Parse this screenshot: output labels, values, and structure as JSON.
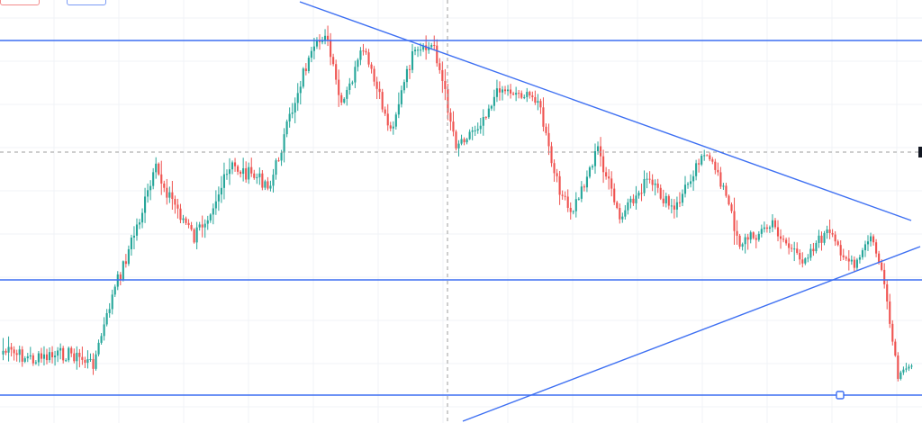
{
  "chart_data": {
    "type": "candlestick",
    "title": "",
    "xlabel": "",
    "ylabel": "",
    "ylim": [
      0,
      470
    ],
    "grid": true,
    "colors": {
      "up": "#26a69a",
      "down": "#ef5350",
      "drawing": "#3d6ff2",
      "crosshair": "#9e9e9e",
      "grid": "#f0f3f7"
    },
    "segments": [
      {
        "from": 0,
        "to": 12,
        "start": 390,
        "end": 400,
        "noise": 16
      },
      {
        "from": 12,
        "to": 24,
        "start": 400,
        "end": 392,
        "noise": 16
      },
      {
        "from": 24,
        "to": 33,
        "start": 392,
        "end": 405,
        "noise": 14
      },
      {
        "from": 33,
        "to": 40,
        "start": 405,
        "end": 330,
        "noise": 10
      },
      {
        "from": 40,
        "to": 56,
        "start": 330,
        "end": 190,
        "noise": 18
      },
      {
        "from": 56,
        "to": 70,
        "start": 190,
        "end": 265,
        "noise": 18
      },
      {
        "from": 70,
        "to": 84,
        "start": 265,
        "end": 185,
        "noise": 18
      },
      {
        "from": 84,
        "to": 98,
        "start": 185,
        "end": 205,
        "noise": 16
      },
      {
        "from": 98,
        "to": 110,
        "start": 205,
        "end": 80,
        "noise": 16
      },
      {
        "from": 110,
        "to": 118,
        "start": 80,
        "end": 35,
        "noise": 14
      },
      {
        "from": 118,
        "to": 124,
        "start": 35,
        "end": 120,
        "noise": 14
      },
      {
        "from": 124,
        "to": 132,
        "start": 120,
        "end": 55,
        "noise": 14
      },
      {
        "from": 132,
        "to": 142,
        "start": 55,
        "end": 145,
        "noise": 14
      },
      {
        "from": 142,
        "to": 150,
        "start": 145,
        "end": 62,
        "noise": 14
      },
      {
        "from": 150,
        "to": 158,
        "start": 62,
        "end": 50,
        "noise": 12
      },
      {
        "from": 158,
        "to": 166,
        "start": 50,
        "end": 160,
        "noise": 16
      },
      {
        "from": 166,
        "to": 174,
        "start": 160,
        "end": 140,
        "noise": 12
      },
      {
        "from": 174,
        "to": 182,
        "start": 140,
        "end": 98,
        "noise": 12
      },
      {
        "from": 182,
        "to": 196,
        "start": 98,
        "end": 110,
        "noise": 10
      },
      {
        "from": 196,
        "to": 202,
        "start": 110,
        "end": 195,
        "noise": 14
      },
      {
        "from": 202,
        "to": 208,
        "start": 195,
        "end": 240,
        "noise": 14
      },
      {
        "from": 208,
        "to": 218,
        "start": 240,
        "end": 165,
        "noise": 14
      },
      {
        "from": 218,
        "to": 226,
        "start": 165,
        "end": 245,
        "noise": 16
      },
      {
        "from": 226,
        "to": 236,
        "start": 245,
        "end": 200,
        "noise": 14
      },
      {
        "from": 236,
        "to": 246,
        "start": 200,
        "end": 235,
        "noise": 14
      },
      {
        "from": 246,
        "to": 256,
        "start": 235,
        "end": 170,
        "noise": 14
      },
      {
        "from": 256,
        "to": 262,
        "start": 170,
        "end": 190,
        "noise": 10
      },
      {
        "from": 262,
        "to": 270,
        "start": 190,
        "end": 270,
        "noise": 16
      },
      {
        "from": 270,
        "to": 282,
        "start": 270,
        "end": 250,
        "noise": 14
      },
      {
        "from": 282,
        "to": 292,
        "start": 250,
        "end": 290,
        "noise": 14
      },
      {
        "from": 292,
        "to": 302,
        "start": 290,
        "end": 258,
        "noise": 14
      },
      {
        "from": 302,
        "to": 312,
        "start": 258,
        "end": 298,
        "noise": 12
      },
      {
        "from": 312,
        "to": 318,
        "start": 298,
        "end": 262,
        "noise": 10
      },
      {
        "from": 318,
        "to": 322,
        "start": 262,
        "end": 300,
        "noise": 8
      },
      {
        "from": 322,
        "to": 328,
        "start": 300,
        "end": 420,
        "noise": 10
      },
      {
        "from": 328,
        "to": 334,
        "start": 420,
        "end": 402,
        "noise": 8
      }
    ],
    "drawings": {
      "horizontal_lines_y": [
        45,
        311,
        439
      ],
      "trend_lines": [
        {
          "x1": 333,
          "y1": 2,
          "x2": 1012,
          "y2": 245
        },
        {
          "x1": 514,
          "y1": 468,
          "x2": 1022,
          "y2": 274
        }
      ],
      "crosshair_x": 497,
      "crosshair_y": 169,
      "handle": {
        "x": 933,
        "y": 439
      }
    }
  }
}
